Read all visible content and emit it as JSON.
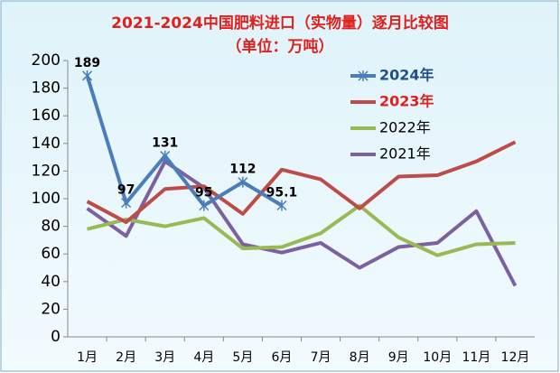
{
  "chart_data": {
    "type": "line",
    "title": "2021-2024中国肥料进口（实物量）逐月比较图",
    "subtitle": "（单位：万吨）",
    "categories": [
      "1月",
      "2月",
      "3月",
      "4月",
      "5月",
      "6月",
      "7月",
      "8月",
      "9月",
      "10月",
      "11月",
      "12月"
    ],
    "series": [
      {
        "name": "2024年",
        "color": "#4a7ebb",
        "values": [
          189,
          97,
          131,
          95,
          112,
          95.1,
          null,
          null,
          null,
          null,
          null,
          null
        ]
      },
      {
        "name": "2023年",
        "color": "#be4b48",
        "values": [
          98,
          83,
          107,
          109,
          89,
          121,
          114,
          93,
          116,
          117,
          127,
          141
        ]
      },
      {
        "name": "2022年",
        "color": "#98b954",
        "values": [
          78,
          85,
          80,
          86,
          64,
          65,
          75,
          95,
          72,
          59,
          67,
          68
        ]
      },
      {
        "name": "2021年",
        "color": "#7d60a0",
        "values": [
          93,
          73,
          127,
          108,
          67,
          61,
          68,
          50,
          65,
          68,
          91,
          37
        ]
      }
    ],
    "ylim": [
      0,
      200
    ],
    "yticks": [
      0,
      20,
      40,
      60,
      80,
      100,
      120,
      140,
      160,
      180,
      200
    ],
    "grid": false,
    "legend": "upper right"
  }
}
